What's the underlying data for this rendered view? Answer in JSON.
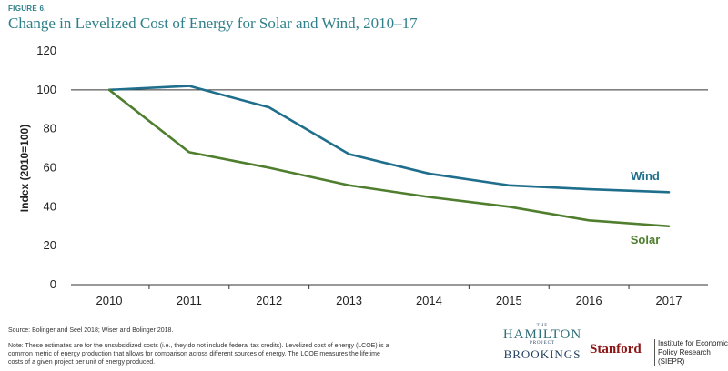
{
  "figure_label": "FIGURE 6.",
  "chart_data": {
    "type": "line",
    "title": "Change in Levelized Cost of Energy for Solar and Wind, 2010–17",
    "xlabel": "",
    "ylabel": "Index (2010=100)",
    "x": [
      2010,
      2011,
      2012,
      2013,
      2014,
      2015,
      2016,
      2017
    ],
    "ylim": [
      0,
      120
    ],
    "yticks": [
      0,
      20,
      40,
      60,
      80,
      100,
      120
    ],
    "reference_line": 100,
    "grid": false,
    "series": [
      {
        "name": "Wind",
        "color": "#1f6e8c",
        "values": [
          100,
          102,
          91,
          67,
          57,
          51,
          49,
          47.5
        ]
      },
      {
        "name": "Solar",
        "color": "#4e7e2e",
        "values": [
          100,
          68,
          60,
          51,
          45,
          40,
          33,
          30
        ]
      }
    ]
  },
  "source": "Source: Bolinger and Seel 2018; Wiser and Bolinger 2018.",
  "note": "Note: These estimates are for the unsubsidized costs (i.e., they do not include federal tax credits). Levelized cost of energy (LCOE) is a common metric of energy production that allows for comparison across different sources of energy. The LCOE measures the lifetime costs of a given project per unit of energy produced.",
  "logos": {
    "hamilton_the": "THE",
    "hamilton_name": "HAMILTON",
    "hamilton_project": "PROJECT",
    "brookings": "BROOKINGS",
    "stanford": "Stanford",
    "siepr": "Institute for Economic Policy Research (SIEPR)"
  }
}
